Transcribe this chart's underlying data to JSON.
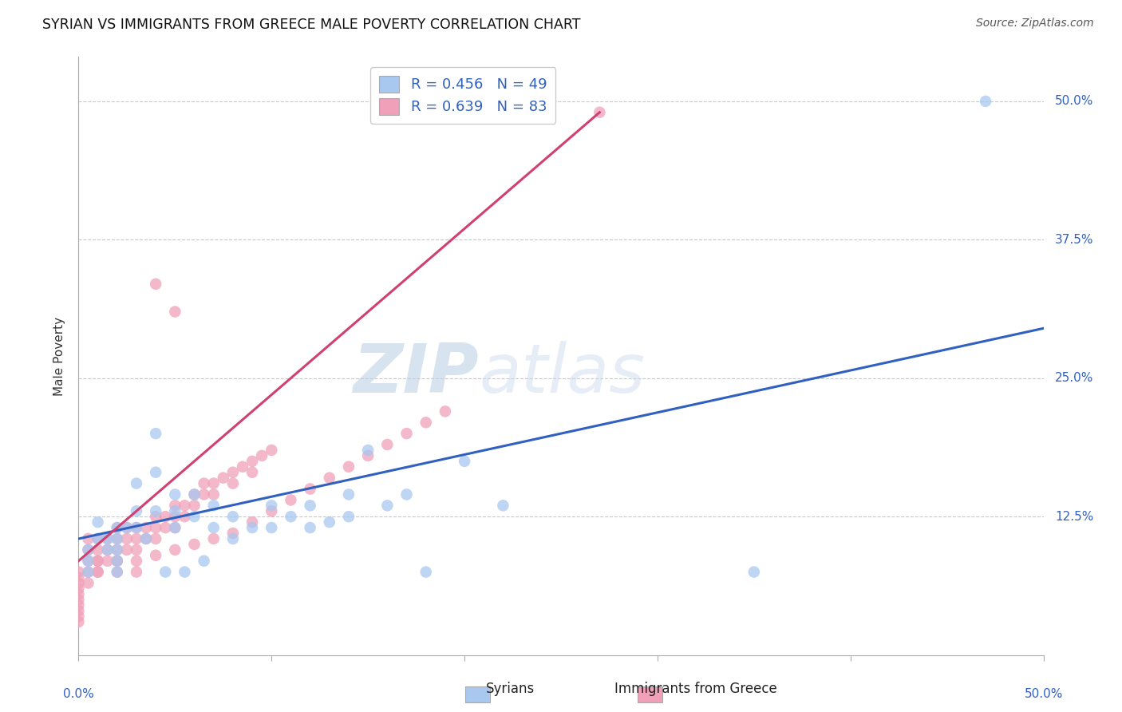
{
  "title": "SYRIAN VS IMMIGRANTS FROM GREECE MALE POVERTY CORRELATION CHART",
  "source": "Source: ZipAtlas.com",
  "ylabel": "Male Poverty",
  "legend_r_syrians": "R = 0.456",
  "legend_n_syrians": "N = 49",
  "legend_r_greece": "R = 0.639",
  "legend_n_greece": "N = 83",
  "color_syrians": "#a8c8f0",
  "color_greece": "#f0a0b8",
  "color_line_syrians": "#3060c0",
  "color_line_greece": "#d04070",
  "watermark_color": "#c8d8ee",
  "background_color": "#ffffff",
  "grid_color": "#c8c8c8",
  "xlim": [
    0.0,
    0.5
  ],
  "ylim": [
    0.0,
    0.54
  ],
  "syrians_x": [
    0.47,
    0.35,
    0.18,
    0.02,
    0.02,
    0.02,
    0.02,
    0.02,
    0.03,
    0.03,
    0.03,
    0.04,
    0.04,
    0.04,
    0.05,
    0.05,
    0.05,
    0.06,
    0.06,
    0.07,
    0.07,
    0.08,
    0.08,
    0.09,
    0.1,
    0.1,
    0.11,
    0.12,
    0.12,
    0.13,
    0.14,
    0.14,
    0.15,
    0.16,
    0.17,
    0.2,
    0.22,
    0.01,
    0.01,
    0.005,
    0.005,
    0.005,
    0.015,
    0.015,
    0.025,
    0.035,
    0.045,
    0.055,
    0.065
  ],
  "syrians_y": [
    0.5,
    0.075,
    0.075,
    0.115,
    0.105,
    0.095,
    0.085,
    0.075,
    0.155,
    0.13,
    0.115,
    0.2,
    0.165,
    0.13,
    0.145,
    0.13,
    0.115,
    0.145,
    0.125,
    0.135,
    0.115,
    0.125,
    0.105,
    0.115,
    0.135,
    0.115,
    0.125,
    0.135,
    0.115,
    0.12,
    0.145,
    0.125,
    0.185,
    0.135,
    0.145,
    0.175,
    0.135,
    0.12,
    0.105,
    0.095,
    0.085,
    0.075,
    0.105,
    0.095,
    0.115,
    0.105,
    0.075,
    0.075,
    0.085
  ],
  "greece_x": [
    0.27,
    0.04,
    0.05,
    0.005,
    0.005,
    0.005,
    0.005,
    0.005,
    0.01,
    0.01,
    0.01,
    0.01,
    0.015,
    0.015,
    0.015,
    0.02,
    0.02,
    0.02,
    0.02,
    0.025,
    0.025,
    0.025,
    0.03,
    0.03,
    0.03,
    0.035,
    0.035,
    0.04,
    0.04,
    0.04,
    0.045,
    0.045,
    0.05,
    0.05,
    0.05,
    0.055,
    0.055,
    0.06,
    0.06,
    0.065,
    0.065,
    0.07,
    0.07,
    0.075,
    0.08,
    0.08,
    0.085,
    0.09,
    0.09,
    0.095,
    0.1,
    0.0,
    0.0,
    0.0,
    0.0,
    0.0,
    0.0,
    0.0,
    0.0,
    0.0,
    0.0,
    0.01,
    0.01,
    0.02,
    0.02,
    0.03,
    0.03,
    0.04,
    0.05,
    0.06,
    0.07,
    0.08,
    0.09,
    0.1,
    0.11,
    0.12,
    0.13,
    0.14,
    0.15,
    0.16,
    0.17,
    0.18,
    0.19
  ],
  "greece_y": [
    0.49,
    0.335,
    0.31,
    0.105,
    0.095,
    0.085,
    0.075,
    0.065,
    0.105,
    0.095,
    0.085,
    0.075,
    0.105,
    0.095,
    0.085,
    0.115,
    0.105,
    0.095,
    0.085,
    0.115,
    0.105,
    0.095,
    0.115,
    0.105,
    0.095,
    0.115,
    0.105,
    0.125,
    0.115,
    0.105,
    0.125,
    0.115,
    0.135,
    0.125,
    0.115,
    0.135,
    0.125,
    0.145,
    0.135,
    0.155,
    0.145,
    0.155,
    0.145,
    0.16,
    0.165,
    0.155,
    0.17,
    0.175,
    0.165,
    0.18,
    0.185,
    0.075,
    0.07,
    0.065,
    0.06,
    0.055,
    0.05,
    0.045,
    0.04,
    0.035,
    0.03,
    0.085,
    0.075,
    0.085,
    0.075,
    0.085,
    0.075,
    0.09,
    0.095,
    0.1,
    0.105,
    0.11,
    0.12,
    0.13,
    0.14,
    0.15,
    0.16,
    0.17,
    0.18,
    0.19,
    0.2,
    0.21,
    0.22
  ],
  "syrians_line_x": [
    0.0,
    0.5
  ],
  "syrians_line_y": [
    0.105,
    0.295
  ],
  "greece_line_x": [
    0.0,
    0.27
  ],
  "greece_line_y": [
    0.085,
    0.49
  ]
}
